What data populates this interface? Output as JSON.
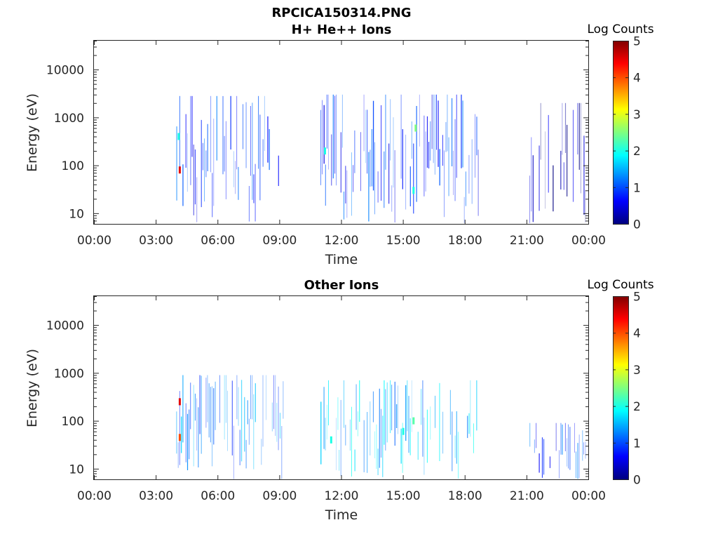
{
  "figure_title": "RPCICA150314.PNG",
  "colors": {
    "colormap": [
      "#00007f",
      "#0000ff",
      "#007fff",
      "#00ffff",
      "#7fff7f",
      "#ffff00",
      "#ff7f00",
      "#ff0000",
      "#7f0000"
    ],
    "text": "#262626"
  },
  "chart_data": [
    {
      "type": "heatmap",
      "title": "H+ He++ Ions",
      "xlabel": "Time",
      "ylabel": "Energy (eV)",
      "x_ticks": [
        "00:00",
        "03:00",
        "06:00",
        "09:00",
        "12:00",
        "15:00",
        "18:00",
        "21:00",
        "00:00"
      ],
      "xlim_hours": [
        0,
        24
      ],
      "y_scale": "log",
      "y_ticks": [
        "10",
        "100",
        "1000",
        "10000"
      ],
      "ylim": [
        6,
        40000
      ],
      "colorbar": {
        "label": "Log Counts",
        "ticks": [
          "0",
          "1",
          "2",
          "3",
          "4",
          "5"
        ],
        "range": [
          0,
          5
        ]
      },
      "grid": false,
      "data_blocks": [
        {
          "t_start": 4.0,
          "t_end": 9.2,
          "e_min": 6,
          "e_max": 2800,
          "level": 0.9
        },
        {
          "t_start": 11.0,
          "t_end": 18.7,
          "e_min": 6,
          "e_max": 3000,
          "level": 1.0
        },
        {
          "t_start": 21.0,
          "t_end": 23.9,
          "e_min": 6,
          "e_max": 2000,
          "level": 0.4
        }
      ],
      "hotspots": [
        {
          "t": 4.15,
          "e": 80,
          "level": 4.5
        },
        {
          "t": 15.6,
          "e": 600,
          "level": 2.5
        },
        {
          "t": 15.5,
          "e": 30,
          "level": 2.0
        },
        {
          "t": 11.2,
          "e": 200,
          "level": 2.0
        },
        {
          "t": 4.1,
          "e": 400,
          "level": 2.0
        }
      ]
    },
    {
      "type": "heatmap",
      "title": "Other Ions",
      "xlabel": "Time",
      "ylabel": "Energy (eV)",
      "x_ticks": [
        "00:00",
        "03:00",
        "06:00",
        "09:00",
        "12:00",
        "15:00",
        "18:00",
        "21:00",
        "00:00"
      ],
      "xlim_hours": [
        0,
        24
      ],
      "y_scale": "log",
      "y_ticks": [
        "10",
        "100",
        "1000",
        "10000"
      ],
      "ylim": [
        6,
        40000
      ],
      "colorbar": {
        "label": "Log Counts",
        "ticks": [
          "0",
          "1",
          "2",
          "3",
          "4",
          "5"
        ],
        "range": [
          0,
          5
        ]
      },
      "grid": false,
      "data_blocks": [
        {
          "t_start": 4.0,
          "t_end": 9.2,
          "e_min": 6,
          "e_max": 900,
          "level": 1.3
        },
        {
          "t_start": 11.0,
          "t_end": 18.7,
          "e_min": 6,
          "e_max": 700,
          "level": 1.6
        },
        {
          "t_start": 21.0,
          "t_end": 23.9,
          "e_min": 6,
          "e_max": 90,
          "level": 1.0
        }
      ],
      "hotspots": [
        {
          "t": 4.15,
          "e": 250,
          "level": 4.5
        },
        {
          "t": 4.15,
          "e": 45,
          "level": 4.0
        },
        {
          "t": 15.5,
          "e": 100,
          "level": 2.3
        },
        {
          "t": 15.0,
          "e": 60,
          "level": 2.0
        },
        {
          "t": 11.5,
          "e": 40,
          "level": 2.0
        }
      ]
    }
  ]
}
